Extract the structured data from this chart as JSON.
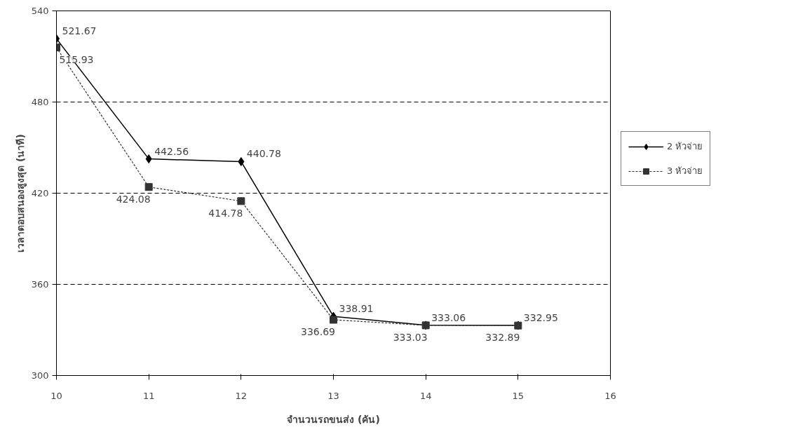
{
  "chart_data": {
    "type": "line",
    "xlabel": "จำนวนรถขนส่ง (คัน)",
    "ylabel": "เวลาตอบสนองสูงสุด (นาที)",
    "x": [
      10,
      11,
      12,
      13,
      14,
      15
    ],
    "series": [
      {
        "name": "2 หัวจ่าย",
        "color": "#000000",
        "marker": "diamond",
        "line_style": "solid",
        "values": [
          521.67,
          442.56,
          440.78,
          338.91,
          333.06,
          332.95
        ]
      },
      {
        "name": "3 หัวจ่าย",
        "color": "#333333",
        "marker": "square",
        "line_style": "dotted",
        "values": [
          515.93,
          424.08,
          414.78,
          336.69,
          333.03,
          332.89
        ]
      }
    ],
    "xlim": [
      10,
      16
    ],
    "xticks": [
      10,
      11,
      12,
      13,
      14,
      15,
      16
    ],
    "ylim": [
      300,
      540
    ],
    "yticks": [
      300,
      360,
      420,
      480,
      540
    ],
    "grid": "y",
    "legend": "right",
    "data_labels": true
  }
}
